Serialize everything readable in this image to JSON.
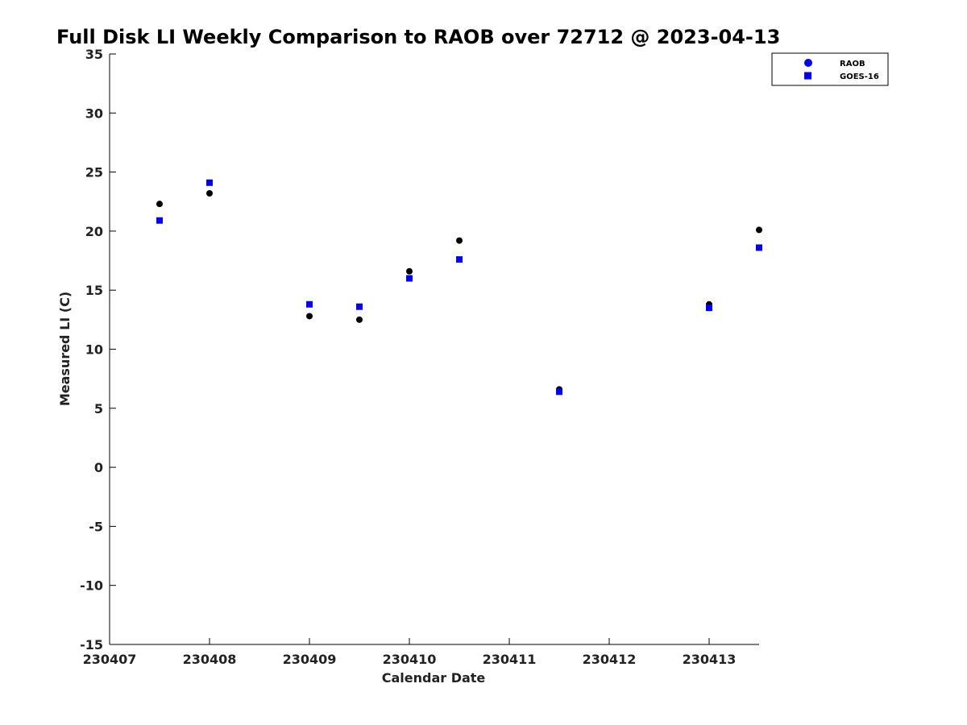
{
  "chart_data": {
    "type": "scatter",
    "title": "Full Disk LI Weekly Comparison to RAOB over 72712 @ 2023-04-13",
    "xlabel": "Calendar Date",
    "ylabel": "Measured LI (C)",
    "xlim": [
      230407,
      230413.5
    ],
    "ylim": [
      -15,
      35
    ],
    "x_ticks": [
      230407,
      230408,
      230409,
      230410,
      230411,
      230412,
      230413
    ],
    "x_tick_labels": [
      "230407",
      "230408",
      "230409",
      "230410",
      "230411",
      "230412",
      "230413"
    ],
    "y_ticks": [
      -15,
      -10,
      -5,
      0,
      5,
      10,
      15,
      20,
      25,
      30,
      35
    ],
    "y_tick_labels": [
      "-15",
      "-10",
      "-5",
      "0",
      "5",
      "10",
      "15",
      "20",
      "25",
      "30",
      "35"
    ],
    "grid": false,
    "legend_position": "top-right",
    "series": [
      {
        "name": "RAOB",
        "marker": "circle",
        "color": "#000000",
        "legend_color": "#0000ee",
        "x": [
          230407.5,
          230408,
          230409,
          230409.5,
          230410,
          230410.5,
          230411.5,
          230413,
          230413.5
        ],
        "y": [
          22.3,
          23.2,
          12.8,
          12.5,
          16.6,
          19.2,
          6.6,
          13.8,
          20.1
        ]
      },
      {
        "name": "GOES-16",
        "marker": "square",
        "color": "#0000ee",
        "legend_color": "#0000ee",
        "x": [
          230407.5,
          230408,
          230409,
          230409.5,
          230410,
          230410.5,
          230411.5,
          230413,
          230413.5
        ],
        "y": [
          20.9,
          24.1,
          13.8,
          13.6,
          16.0,
          17.6,
          6.4,
          13.5,
          18.6
        ]
      }
    ]
  }
}
